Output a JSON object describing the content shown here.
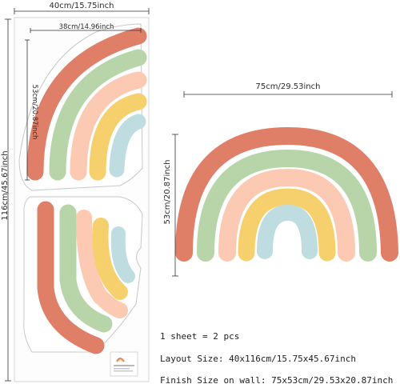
{
  "dimensions": {
    "sheet_width": "40cm/15.75inch",
    "top_piece_width": "38cm/14.96inch",
    "top_piece_height": "53cm/20.87inch",
    "sheet_height": "116cm/45.67inch",
    "finish_width": "75cm/29.53inch",
    "finish_height": "53cm/20.87inch"
  },
  "info": {
    "sheet_count": "1 sheet = 2 pcs",
    "layout_size": "Layout Size: 40x116cm/15.75x45.67inch",
    "finish_size": "Finish Size on wall: 75x53cm/29.53x20.87inch"
  },
  "colors": {
    "terracotta": "#e07f68",
    "sage": "#b7d5a8",
    "peach": "#fcc9b3",
    "mustard": "#f6d06c",
    "light_blue": "#bfdde0"
  }
}
